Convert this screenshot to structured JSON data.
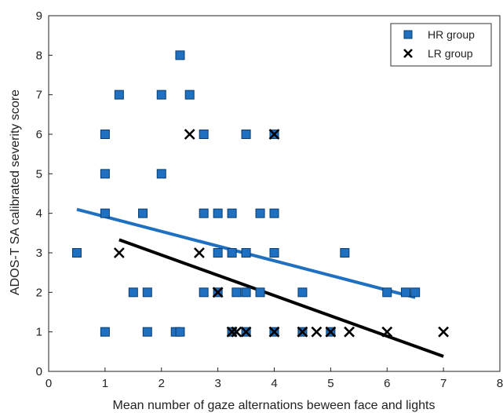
{
  "chart_data": {
    "type": "scatter",
    "title": "",
    "xlabel": "Mean number of gaze alternations beween face and lights",
    "ylabel": "ADOS-T SA calibrated severity score",
    "xlim": [
      0,
      8
    ],
    "ylim": [
      0,
      9
    ],
    "xticks": [
      "0",
      "1",
      "2",
      "3",
      "4",
      "5",
      "6",
      "7",
      "8"
    ],
    "yticks": [
      "0",
      "1",
      "2",
      "3",
      "4",
      "5",
      "6",
      "7",
      "8",
      "9"
    ],
    "grid": false,
    "legend_position": "top-right",
    "series": [
      {
        "name": "HR group",
        "marker": "square",
        "color": "#1f70c1",
        "points": [
          [
            0.5,
            3
          ],
          [
            1.0,
            6
          ],
          [
            1.0,
            5
          ],
          [
            1.0,
            4
          ],
          [
            1.0,
            1
          ],
          [
            1.25,
            7
          ],
          [
            1.5,
            2
          ],
          [
            1.67,
            4
          ],
          [
            1.75,
            2
          ],
          [
            1.75,
            1
          ],
          [
            2.0,
            7
          ],
          [
            2.0,
            5
          ],
          [
            2.25,
            1
          ],
          [
            2.33,
            1
          ],
          [
            2.33,
            8
          ],
          [
            2.5,
            7
          ],
          [
            2.75,
            6
          ],
          [
            2.75,
            4
          ],
          [
            2.75,
            2
          ],
          [
            3.0,
            4
          ],
          [
            3.0,
            3
          ],
          [
            3.0,
            2
          ],
          [
            3.25,
            4
          ],
          [
            3.25,
            3
          ],
          [
            3.25,
            1
          ],
          [
            3.33,
            2
          ],
          [
            3.5,
            6
          ],
          [
            3.5,
            3
          ],
          [
            3.5,
            2
          ],
          [
            3.5,
            1
          ],
          [
            3.75,
            4
          ],
          [
            3.75,
            2
          ],
          [
            4.0,
            6
          ],
          [
            4.0,
            4
          ],
          [
            4.0,
            3
          ],
          [
            4.0,
            1
          ],
          [
            4.5,
            2
          ],
          [
            4.5,
            1
          ],
          [
            5.0,
            1
          ],
          [
            5.25,
            3
          ],
          [
            6.0,
            2
          ],
          [
            6.33,
            2
          ],
          [
            6.5,
            2
          ]
        ],
        "trend_line": {
          "x": [
            0.5,
            6.5
          ],
          "y": [
            4.1,
            1.87
          ]
        }
      },
      {
        "name": "LR group",
        "marker": "x",
        "color": "#000000",
        "points": [
          [
            1.25,
            3
          ],
          [
            2.5,
            6
          ],
          [
            2.67,
            3
          ],
          [
            3.0,
            2
          ],
          [
            3.25,
            1
          ],
          [
            3.33,
            1
          ],
          [
            3.5,
            1
          ],
          [
            4.0,
            6
          ],
          [
            4.0,
            1
          ],
          [
            4.5,
            1
          ],
          [
            4.75,
            1
          ],
          [
            5.0,
            1
          ],
          [
            5.33,
            1
          ],
          [
            6.0,
            1
          ],
          [
            7.0,
            1
          ]
        ],
        "trend_line": {
          "x": [
            1.25,
            7.0
          ],
          "y": [
            3.33,
            0.38
          ]
        }
      }
    ]
  }
}
